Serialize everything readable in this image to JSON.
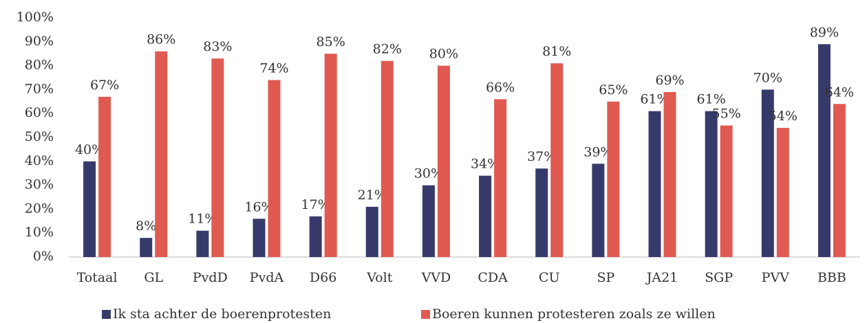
{
  "chart_data": {
    "type": "bar",
    "categories": [
      "Totaal",
      "GL",
      "PvdD",
      "PvdA",
      "D66",
      "Volt",
      "VVD",
      "CDA",
      "CU",
      "SP",
      "JA21",
      "SGP",
      "PVV",
      "BBB"
    ],
    "series": [
      {
        "name": "Ik sta achter de boerenprotesten",
        "color": "#363a6b",
        "values": [
          40,
          8,
          11,
          16,
          17,
          21,
          30,
          34,
          37,
          39,
          61,
          61,
          70,
          89
        ],
        "value_labels": [
          "40%",
          "8%",
          "11%",
          "16%",
          "17%",
          "21%",
          "30%",
          "34%",
          "37%",
          "39%",
          "61%",
          "61%",
          "70%",
          "89%"
        ]
      },
      {
        "name": "Boeren kunnen protesteren zoals ze willen",
        "color": "#e05a52",
        "values": [
          67,
          86,
          83,
          74,
          85,
          82,
          80,
          66,
          81,
          65,
          69,
          55,
          54,
          64
        ],
        "value_labels": [
          "67%",
          "86%",
          "83%",
          "74%",
          "85%",
          "82%",
          "80%",
          "66%",
          "81%",
          "65%",
          "69%",
          "55%",
          "54%",
          "64%"
        ]
      }
    ],
    "ylim": [
      0,
      100
    ],
    "yticks": [
      {
        "value": 0,
        "label": "0%"
      },
      {
        "value": 10,
        "label": "10%"
      },
      {
        "value": 20,
        "label": "20%"
      },
      {
        "value": 30,
        "label": "30%"
      },
      {
        "value": 40,
        "label": "40%"
      },
      {
        "value": 50,
        "label": "50%"
      },
      {
        "value": 60,
        "label": "60%"
      },
      {
        "value": 70,
        "label": "70%"
      },
      {
        "value": 80,
        "label": "80%"
      },
      {
        "value": 90,
        "label": "90%"
      },
      {
        "value": 100,
        "label": "100%"
      }
    ],
    "grid": false,
    "legend": "bottom"
  }
}
